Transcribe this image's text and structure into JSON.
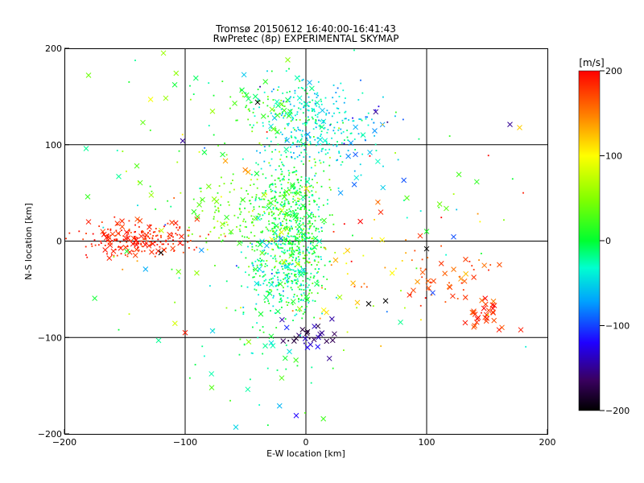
{
  "chart_data": {
    "type": "scatter",
    "title": "Tromsø 20150612 16:40:00-16:41:43",
    "subtitle": "RwPretec (8p) EXPERIMENTAL SKYMAP",
    "xlabel": "E-W location [km]",
    "ylabel": "N-S location [km]",
    "xlim": [
      -200,
      200
    ],
    "ylim": [
      -200,
      200
    ],
    "xticks": [
      -200,
      -100,
      0,
      100,
      200
    ],
    "yticks": [
      -200,
      -100,
      0,
      100,
      200
    ],
    "grid": true,
    "colorbar": {
      "label": "[m/s]",
      "range": [
        -200,
        200
      ],
      "ticks": [
        200,
        100,
        0,
        -100,
        -200
      ],
      "colormap": "rainbow"
    },
    "marker_types": [
      "small dot",
      "cross"
    ],
    "clusters": [
      {
        "cx": -140,
        "cy": 3,
        "sx": 25,
        "sy": 9,
        "n": 220,
        "v": 185,
        "vs": 10,
        "cross": 0.18
      },
      {
        "cx": -12,
        "cy": 15,
        "sx": 14,
        "sy": 35,
        "n": 650,
        "v": 10,
        "vs": 30,
        "cross": 0.05
      },
      {
        "cx": 5,
        "cy": 120,
        "sx": 22,
        "sy": 25,
        "n": 320,
        "v": -40,
        "vs": 20,
        "cross": 0.06
      },
      {
        "cx": -20,
        "cy": -40,
        "sx": 15,
        "sy": 18,
        "n": 220,
        "v": -25,
        "vs": 25,
        "cross": 0.06
      },
      {
        "cx": -55,
        "cy": 30,
        "sx": 22,
        "sy": 20,
        "n": 130,
        "v": 35,
        "vs": 25,
        "cross": 0.12
      },
      {
        "cx": -30,
        "cy": 140,
        "sx": 18,
        "sy": 15,
        "n": 70,
        "v": 20,
        "vs": 20,
        "cross": 0.3
      },
      {
        "cx": 145,
        "cy": -75,
        "sx": 9,
        "sy": 7,
        "n": 30,
        "v": 180,
        "vs": 15,
        "cross": 0.85
      },
      {
        "cx": 115,
        "cy": -40,
        "sx": 22,
        "sy": 15,
        "n": 45,
        "v": 175,
        "vs": 15,
        "cross": 0.4
      },
      {
        "cx": 0,
        "cy": -100,
        "sx": 12,
        "sy": 10,
        "n": 28,
        "v": -150,
        "vs": 20,
        "cross": 0.8
      },
      {
        "cx": 45,
        "cy": -40,
        "sx": 25,
        "sy": 25,
        "n": 35,
        "v": 130,
        "vs": 60,
        "cross": 0.3
      },
      {
        "cx": 50,
        "cy": 115,
        "sx": 10,
        "sy": 20,
        "n": 25,
        "v": -90,
        "vs": 40,
        "cross": 0.5
      },
      {
        "cx": -40,
        "cy": -110,
        "sx": 30,
        "sy": 40,
        "n": 55,
        "v": -10,
        "vs": 30,
        "cross": 0.25
      },
      {
        "cx": -90,
        "cy": 60,
        "sx": 60,
        "sy": 80,
        "n": 90,
        "v": 20,
        "vs": 60,
        "cross": 0.25
      },
      {
        "cx": 60,
        "cy": 20,
        "sx": 60,
        "sy": 60,
        "n": 60,
        "v": 40,
        "vs": 120,
        "cross": 0.3
      }
    ],
    "points": [
      {
        "x": 169,
        "y": 121,
        "v": -150,
        "m": "x"
      },
      {
        "x": 180,
        "y": 50,
        "v": 190,
        "m": "."
      },
      {
        "x": 160,
        "y": -92,
        "v": 190,
        "m": "x"
      },
      {
        "x": 178,
        "y": -92,
        "v": 190,
        "m": "x"
      },
      {
        "x": 62,
        "y": 30,
        "v": 185,
        "m": "x"
      },
      {
        "x": -135,
        "y": 123,
        "v": 35,
        "m": "x"
      },
      {
        "x": -180,
        "y": 172,
        "v": 40,
        "m": "x"
      },
      {
        "x": -182,
        "y": 96,
        "v": -20,
        "m": "x"
      },
      {
        "x": -155,
        "y": 67,
        "v": -20,
        "m": "x"
      },
      {
        "x": -140,
        "y": 78,
        "v": 30,
        "m": "x"
      },
      {
        "x": -102,
        "y": 104,
        "v": -150,
        "m": "x"
      },
      {
        "x": -40,
        "y": 144,
        "v": -200,
        "m": "x"
      },
      {
        "x": -8,
        "y": -181,
        "v": -120,
        "m": "x"
      },
      {
        "x": -58,
        "y": -193,
        "v": -50,
        "m": "x"
      },
      {
        "x": -20,
        "y": -142,
        "v": 30,
        "m": "x"
      },
      {
        "x": -100,
        "y": -95,
        "v": 190,
        "m": "x"
      },
      {
        "x": -180,
        "y": 20,
        "v": 190,
        "m": "x"
      },
      {
        "x": -120,
        "y": -12,
        "v": -200,
        "m": "x"
      },
      {
        "x": 100,
        "y": -8,
        "v": -200,
        "m": "x"
      },
      {
        "x": 100,
        "y": 10,
        "v": 10,
        "m": "x"
      },
      {
        "x": 66,
        "y": -62,
        "v": -200,
        "m": "x"
      },
      {
        "x": 52,
        "y": -65,
        "v": -200,
        "m": "x"
      },
      {
        "x": 40,
        "y": 198,
        "v": -20,
        "m": "."
      },
      {
        "x": -15,
        "y": 188,
        "v": 50,
        "m": "x"
      },
      {
        "x": -155,
        "y": -92,
        "v": 0,
        "m": "."
      },
      {
        "x": -78,
        "y": -152,
        "v": 30,
        "m": "x"
      },
      {
        "x": -122,
        "y": -103,
        "v": -20,
        "m": "x"
      }
    ]
  }
}
